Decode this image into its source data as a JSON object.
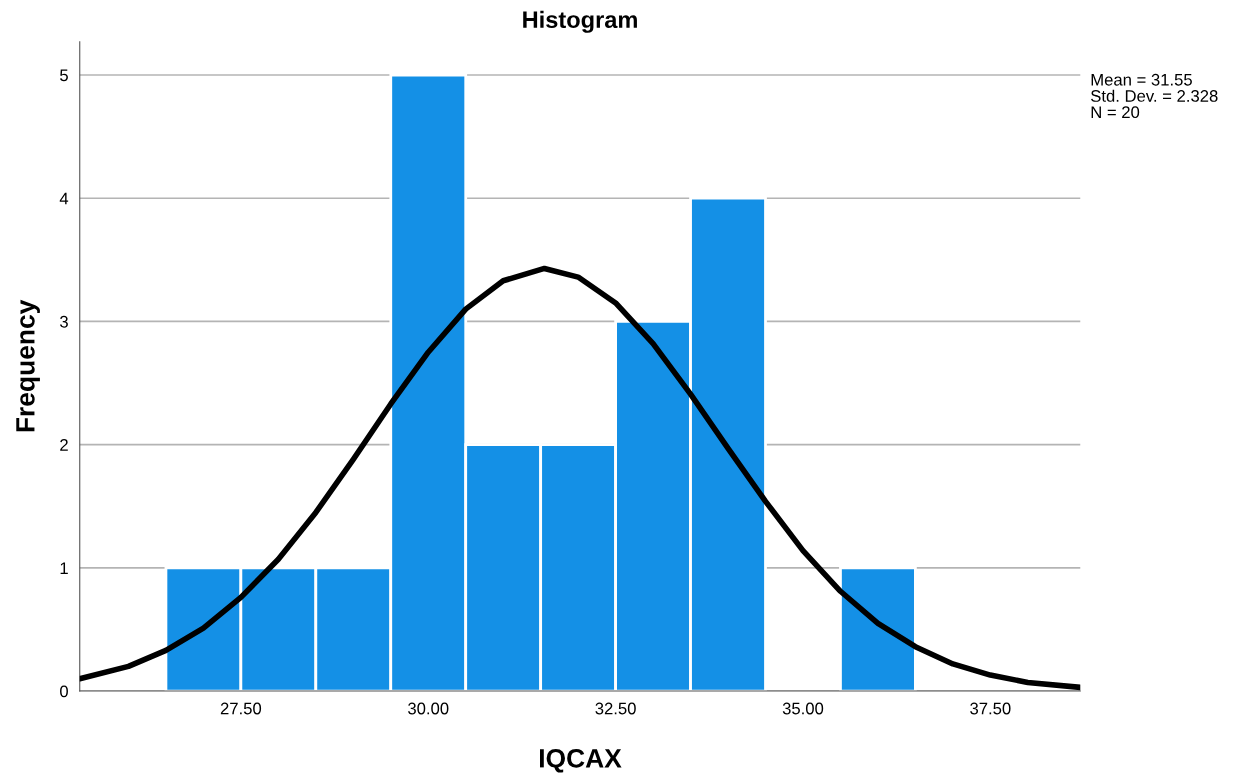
{
  "chart_data": {
    "type": "histogram",
    "title": "Histogram",
    "xlabel": "IQCAX",
    "ylabel": "Frequency",
    "bins": [
      26.5,
      27.5,
      28.5,
      29.5,
      30.5,
      31.5,
      32.5,
      33.5,
      34.5,
      35.5,
      36.5
    ],
    "values": [
      1,
      1,
      1,
      5,
      2,
      2,
      3,
      4,
      0,
      1
    ],
    "color": "#1490e6",
    "series": [
      {
        "type": "line",
        "color": "#000000",
        "x": [
          25.35,
          26,
          26.5,
          27,
          27.5,
          28,
          28.5,
          29,
          29.5,
          30,
          30.5,
          31,
          31.55,
          32,
          32.5,
          33,
          33.5,
          34,
          34.5,
          35,
          35.5,
          36,
          36.5,
          37,
          37.5,
          38,
          38.7
        ],
        "values": [
          0.1,
          0.2,
          0.33,
          0.51,
          0.76,
          1.07,
          1.45,
          1.88,
          2.33,
          2.75,
          3.1,
          3.33,
          3.43,
          3.36,
          3.15,
          2.82,
          2.41,
          1.97,
          1.54,
          1.14,
          0.81,
          0.55,
          0.36,
          0.22,
          0.13,
          0.07,
          0.03
        ]
      }
    ],
    "xlim": [
      25.35,
      38.7
    ],
    "ylim": [
      0,
      5.27
    ],
    "xticks": [
      {
        "value": 27.5,
        "label": "27.50"
      },
      {
        "value": 30,
        "label": "30.00"
      },
      {
        "value": 32.5,
        "label": "32.50"
      },
      {
        "value": 35,
        "label": "35.00"
      },
      {
        "value": 37.5,
        "label": "37.50"
      }
    ],
    "yticks": [
      0,
      1,
      2,
      3,
      4,
      5
    ],
    "grid": "y",
    "annotations": [
      "Mean = 31.55",
      "Std. Dev. = 2.328",
      "N = 20"
    ]
  }
}
